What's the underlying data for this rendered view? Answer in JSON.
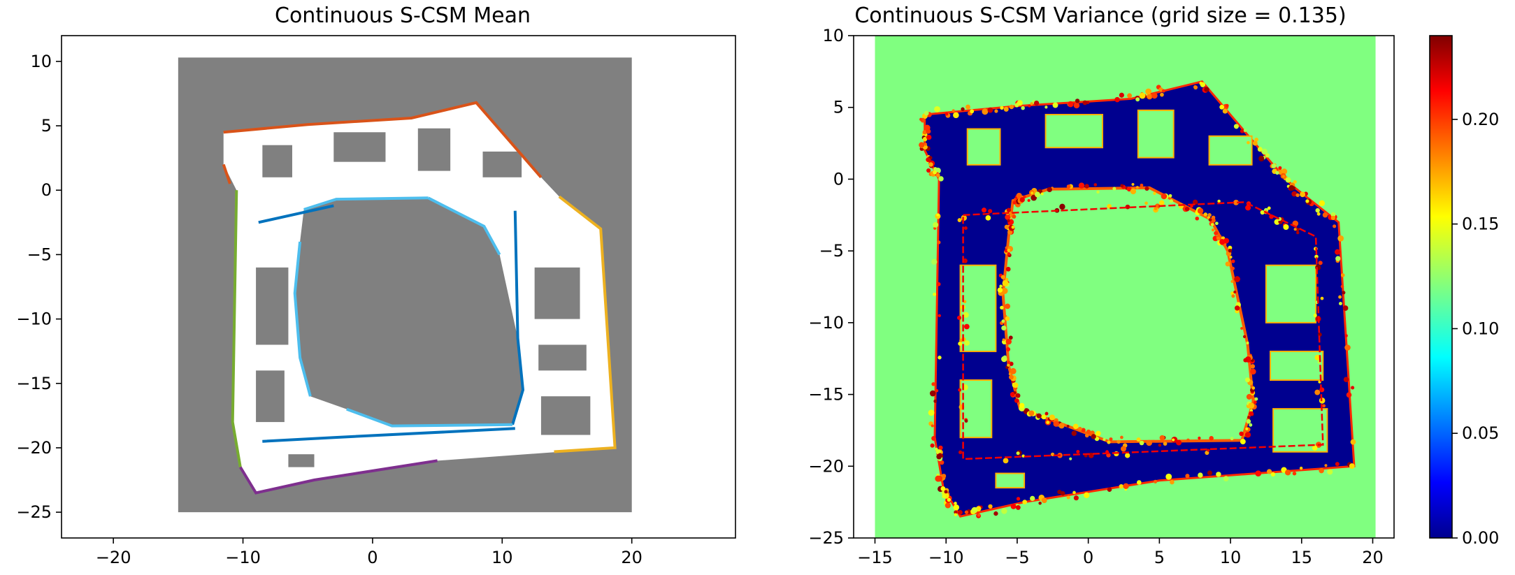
{
  "chart_data": [
    {
      "type": "heatmap",
      "title": "Continuous S-CSM Mean",
      "xlabel": "",
      "ylabel": "",
      "xlim": [
        -24,
        28
      ],
      "ylim": [
        -27,
        12
      ],
      "xticks": [
        -20,
        -10,
        0,
        10,
        20
      ],
      "yticks": [
        10,
        5,
        0,
        -5,
        -10,
        -15,
        -20,
        -25
      ],
      "map_extent": {
        "x": [
          -15,
          20
        ],
        "y": [
          -25,
          10.3
        ]
      },
      "background_color": "#808080",
      "free_space_color": "#ffffff",
      "boundary_colors": [
        "#d95319",
        "#0072bd",
        "#4dbeee",
        "#77ac30",
        "#7e2f8e",
        "#edb120"
      ],
      "grid": false
    },
    {
      "type": "heatmap",
      "title": "Continuous S-CSM Variance (grid size = 0.135)",
      "xlabel": "",
      "ylabel": "",
      "xlim": [
        -16.5,
        21.5
      ],
      "ylim": [
        -25,
        10
      ],
      "xticks": [
        -15,
        -10,
        -5,
        0,
        5,
        10,
        15,
        20
      ],
      "yticks": [
        10,
        5,
        0,
        -5,
        -10,
        -15,
        -20,
        -25
      ],
      "map_extent": {
        "x": [
          -15,
          20.2
        ],
        "y": [
          -25,
          10
        ]
      },
      "unknown_value": 0.12,
      "colormap": "jet",
      "colorbar": {
        "range": [
          0,
          0.24
        ],
        "ticks": [
          "0.00",
          "0.05",
          "0.10",
          "0.15",
          "0.20"
        ]
      },
      "grid": false
    }
  ]
}
